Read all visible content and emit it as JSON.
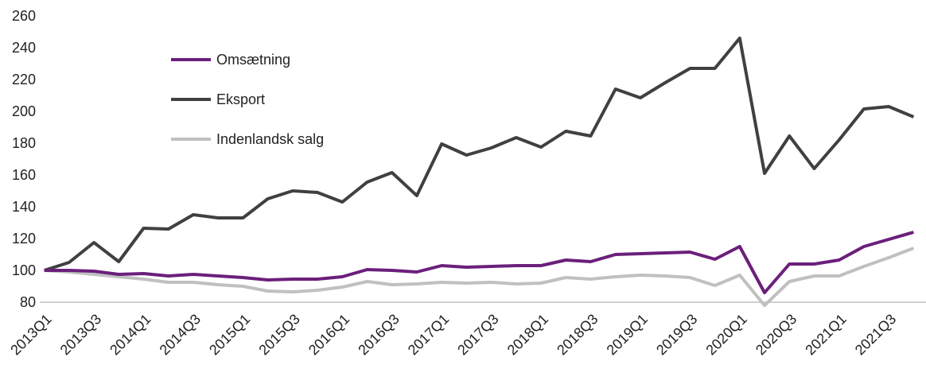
{
  "chart_data": {
    "type": "line",
    "categories": [
      "2013Q1",
      null,
      "2013Q3",
      null,
      "2014Q1",
      null,
      "2014Q3",
      null,
      "2015Q1",
      null,
      "2015Q3",
      null,
      "2016Q1",
      null,
      "2016Q3",
      null,
      "2017Q1",
      null,
      "2017Q3",
      null,
      "2018Q1",
      null,
      "2018Q3",
      null,
      "2019Q1",
      null,
      "2019Q3",
      null,
      "2020Q1",
      null,
      "2020Q3",
      null,
      "2021Q1",
      null,
      "2021Q3",
      null
    ],
    "series": [
      {
        "name": "Omsætning",
        "color": "#6b1f7b",
        "values": [
          100,
          100,
          99.5,
          97.5,
          98,
          96.5,
          97.5,
          96.5,
          95.5,
          94,
          94.5,
          94.5,
          96,
          100.5,
          100,
          99,
          103,
          102,
          102.5,
          103,
          103,
          106.5,
          105.5,
          110,
          110.5,
          111,
          111.5,
          107,
          115,
          86,
          104,
          104,
          106.5,
          115,
          119.5,
          124
        ]
      },
      {
        "name": "Eksport",
        "color": "#404040",
        "values": [
          100,
          105,
          117.5,
          105.5,
          126.5,
          126,
          135,
          133,
          133,
          145,
          150,
          149,
          143,
          155.5,
          161.5,
          147,
          179.5,
          172.5,
          177,
          183.5,
          177.5,
          187.5,
          184.5,
          214,
          208.5,
          218,
          227,
          227,
          246,
          161,
          184.5,
          164,
          182,
          201.5,
          203,
          196.5
        ]
      },
      {
        "name": "Indenlandsk salg",
        "color": "#c0c0c0",
        "values": [
          100,
          99,
          97.5,
          96,
          94.5,
          92.5,
          92.5,
          91,
          90,
          87,
          86.5,
          87.5,
          89.5,
          93,
          91,
          91.5,
          92.5,
          92,
          92.5,
          91.5,
          92,
          95.5,
          94.5,
          96,
          97,
          96.5,
          95.5,
          90.5,
          97,
          78,
          93,
          96.5,
          96.5,
          102.5,
          108,
          114
        ]
      }
    ],
    "ylim": [
      80,
      260
    ],
    "yticks": [
      80,
      100,
      120,
      140,
      160,
      180,
      200,
      220,
      240,
      260
    ],
    "grid": false,
    "legend": "upper left"
  }
}
